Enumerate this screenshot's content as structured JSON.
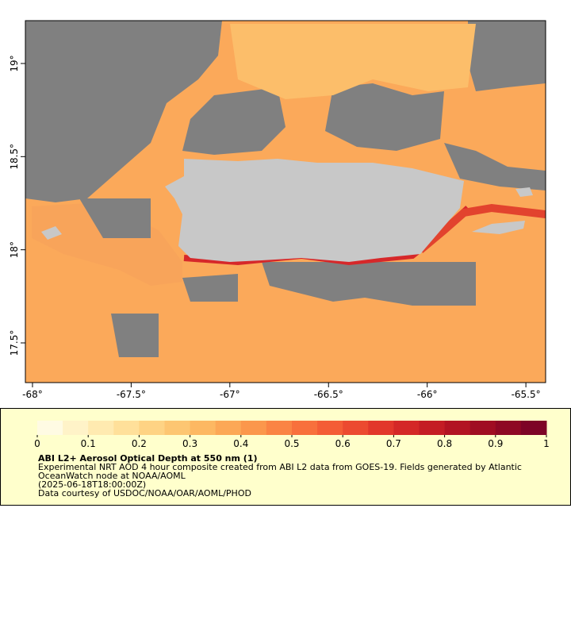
{
  "map": {
    "xlim": [
      -68.036,
      -65.4
    ],
    "ylim": [
      17.287,
      19.23
    ],
    "xticks": [
      {
        "value": -68,
        "label": "-68°"
      },
      {
        "value": -67.5,
        "label": "-67.5°"
      },
      {
        "value": -67,
        "label": "-67°"
      },
      {
        "value": -66.5,
        "label": "-66.5°"
      },
      {
        "value": -66,
        "label": "-66°"
      },
      {
        "value": -65.5,
        "label": "-65.5°"
      }
    ],
    "yticks": [
      {
        "value": 17.5,
        "label": "17.5°"
      },
      {
        "value": 18,
        "label": "18°"
      },
      {
        "value": 18.5,
        "label": "18.5°"
      },
      {
        "value": 19,
        "label": "19°"
      }
    ]
  },
  "colorbar": {
    "lim": [
      0,
      1
    ],
    "ticks": [
      0,
      0.1,
      0.2,
      0.3,
      0.4,
      0.5,
      0.6,
      0.7,
      0.8,
      0.9,
      1
    ],
    "colors": [
      "#fffbe3",
      "#fff3c8",
      "#ffeab0",
      "#ffe09a",
      "#fed384",
      "#fdc672",
      "#fdb862",
      "#fca856",
      "#fb974c",
      "#fa8444",
      "#f8703c",
      "#f45d36",
      "#ec4a30",
      "#e2372b",
      "#d42827",
      "#c41c24",
      "#b21322",
      "#a00d22",
      "#8e0824",
      "#7d0426"
    ]
  },
  "caption": {
    "title": "ABI L2+ Aerosol Optical Depth at 550 nm (1)",
    "lines": [
      "Experimental NRT AOD 4 hour composite created from ABI L2 data from GOES-19. Fields generated by Atlantic",
      "OceanWatch node at NOAA/AOML",
      "(2025-06-18T18:00:00Z)",
      "Data courtesy of USDOC/NOAA/OAR/AOML/PHOD"
    ]
  }
}
